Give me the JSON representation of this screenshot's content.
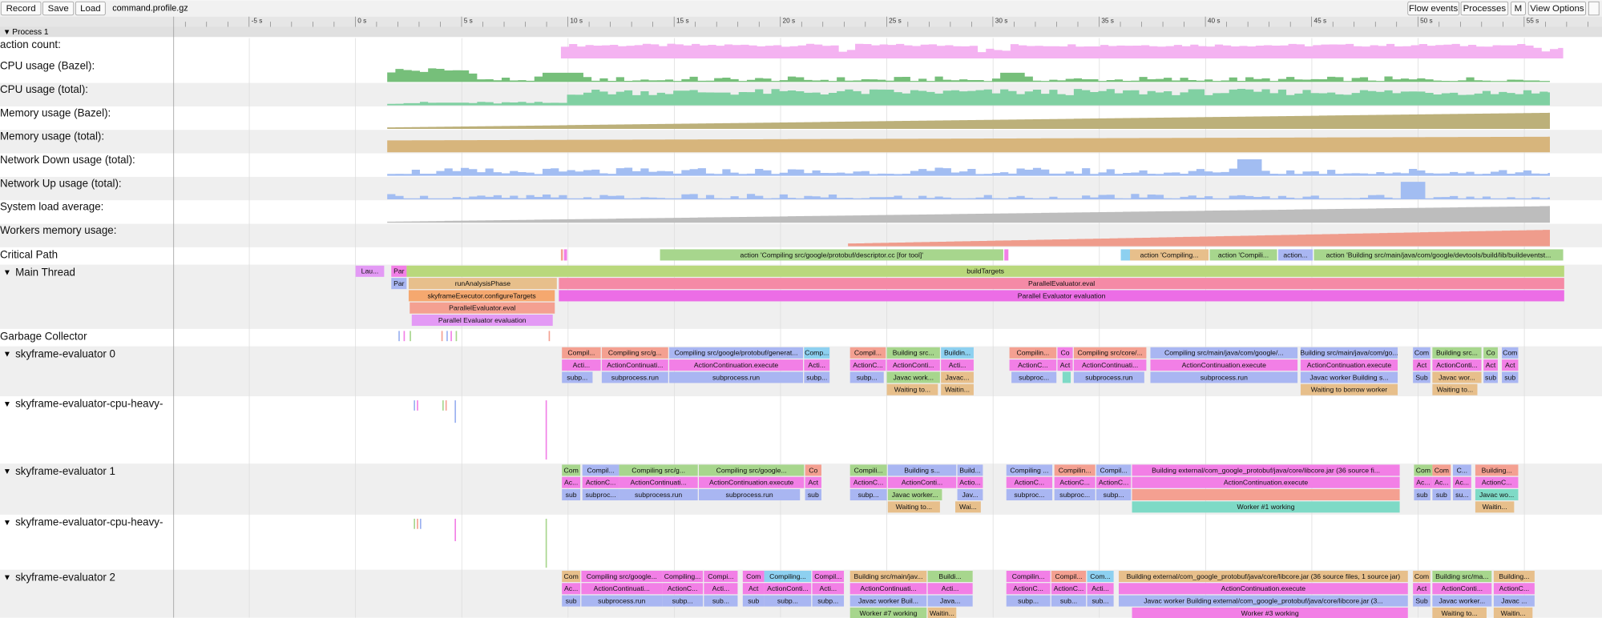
{
  "toolbar": {
    "buttons": [
      "Record",
      "Save",
      "Load"
    ],
    "filename": "command.profile.gz",
    "right_buttons": [
      "Flow events",
      "Processes",
      "M",
      "View Options"
    ]
  },
  "ruler": {
    "ticks": [
      "-5 s",
      "0 s",
      "5 s",
      "10 s",
      "15 s",
      "20 s",
      "25 s",
      "30 s",
      "35 s",
      "40 s",
      "45 s",
      "50 s",
      "55 s"
    ]
  },
  "process": "Process 1",
  "counters": [
    "action count:",
    "CPU usage (Bazel):",
    "CPU usage (total):",
    "Memory usage (Bazel):",
    "Memory usage (total):",
    "Network Down usage (total):",
    "Network Up usage (total):",
    "System load average:",
    "Workers memory usage:"
  ],
  "critical_path": {
    "name": "Critical Path",
    "slices": [
      "action 'Compiling src/google/protobuf/descriptor.cc [for tool]'",
      "action 'Compiling...",
      "action 'Compili...",
      "action...",
      "action 'Building src/main/java/com/google/devtools/build/lib/buildeventst..."
    ]
  },
  "threads": [
    {
      "name": "Main Thread",
      "rows": [
        [
          "Lau...",
          "Par",
          "buildTargets"
        ],
        [
          "Par",
          "runAnalysisPhase",
          "ParallelEvaluator.eval"
        ],
        [
          "skyframeExecutor.configureTargets",
          "Parallel Evaluator evaluation"
        ],
        [
          "ParallelEvaluator.eval"
        ],
        [
          "Parallel Evaluator evaluation"
        ]
      ]
    },
    {
      "name": "Garbage Collector"
    },
    {
      "name": "skyframe-evaluator 0",
      "rows": [
        [
          "Compil...",
          "Compiling src/g...",
          "Compiling src/google/protobuf/generat...",
          "Comp...",
          "Compil...",
          "Building src...",
          "Buildin...",
          "Compilin...",
          "Co",
          "Compiling src/core/...",
          "Compiling src/main/java/com/google/...",
          "Building src/main/java/com/go...",
          "Com",
          "Building src...",
          "Co",
          "Com"
        ],
        [
          "Acti...",
          "ActionContinuati...",
          "ActionContinuation.execute",
          "Acti...",
          "ActionC...",
          "ActionConti...",
          "Acti...",
          "ActionC...",
          "Act",
          "ActionContinuati...",
          "ActionContinuation.execute",
          "ActionContinuation.execute",
          "Act",
          "ActionConti...",
          "Act",
          "Act"
        ],
        [
          "subp...",
          "subprocess.run",
          "subprocess.run",
          "subp...",
          "subp...",
          "Javac work...",
          "Javac...",
          "subproc...",
          "subprocess.run",
          "subprocess.run",
          "Javac worker Building s...",
          "Sub",
          "Javac wor...",
          "sub",
          "sub"
        ],
        [
          "Waiting to...",
          "Waitin...",
          "Waiting to borrow worker",
          "Waiting to..."
        ]
      ]
    },
    {
      "name": "skyframe-evaluator-cpu-heavy-"
    },
    {
      "name": "skyframe-evaluator 1",
      "rows": [
        [
          "Com",
          "Compil...",
          "Compiling src/g...",
          "Compiling src/google...",
          "Co",
          "Compili...",
          "Building s...",
          "Build...",
          "Compiling ...",
          "Compilin...",
          "Compil...",
          "Building external/com_google_protobuf/java/core/libcore.jar (36 source fi...",
          "Com",
          "Com",
          "C...",
          "Building..."
        ],
        [
          "Ac...",
          "ActionC...",
          "ActionContinuati...",
          "ActionContinuation.execute",
          "Act",
          "ActionC...",
          "ActionConti...",
          "Actio...",
          "ActionC...",
          "ActionC...",
          "ActionC...",
          "ActionContinuation.execute",
          "Ac...",
          "Ac...",
          "Ac...",
          "ActionC..."
        ],
        [
          "sub",
          "subproc...",
          "subprocess.run",
          "subprocess.run",
          "sub",
          "subp...",
          "Javac worker...",
          "Jav...",
          "subproc...",
          "subproc...",
          "subp...",
          "sub",
          "sub",
          "su...",
          "Javac wo..."
        ],
        [
          "Waiting to...",
          "Wai...",
          "Worker #1 working",
          "Waitin..."
        ]
      ]
    },
    {
      "name": "skyframe-evaluator-cpu-heavy-"
    },
    {
      "name": "skyframe-evaluator 2",
      "rows": [
        [
          "Com",
          "Compiling src/google...",
          "Compiling...",
          "Compi...",
          "Com",
          "Compiling...",
          "Compil...",
          "Building src/main/jav...",
          "Buildi...",
          "Compilin...",
          "Compil...",
          "Com...",
          "Building external/com_google_protobuf/java/core/libcore.jar (36 source files, 1 source jar)",
          "Com",
          "Building src/ma...",
          "Building..."
        ],
        [
          "Ac...",
          "ActionContinuati...",
          "ActionC...",
          "Acti...",
          "Act",
          "ActionConti...",
          "Acti...",
          "ActionContinuati...",
          "Acti...",
          "ActionC...",
          "ActionC...",
          "Acti...",
          "ActionContinuation.execute",
          "Act",
          "ActionConti...",
          "ActionC..."
        ],
        [
          "sub",
          "subprocess.run",
          "subp...",
          "sub...",
          "sub",
          "subp...",
          "subp...",
          "Javac worker Buil...",
          "Java...",
          "subp...",
          "sub...",
          "sub...",
          "Javac worker Building external/com_google_protobuf/java/core/libcore.jar (3...",
          "Sub",
          "Javac worker...",
          "Javac ..."
        ],
        [
          "Worker #7 working",
          "Waitin...",
          "Worker #3 working",
          "Waiting to...",
          "Waitin..."
        ]
      ]
    }
  ]
}
